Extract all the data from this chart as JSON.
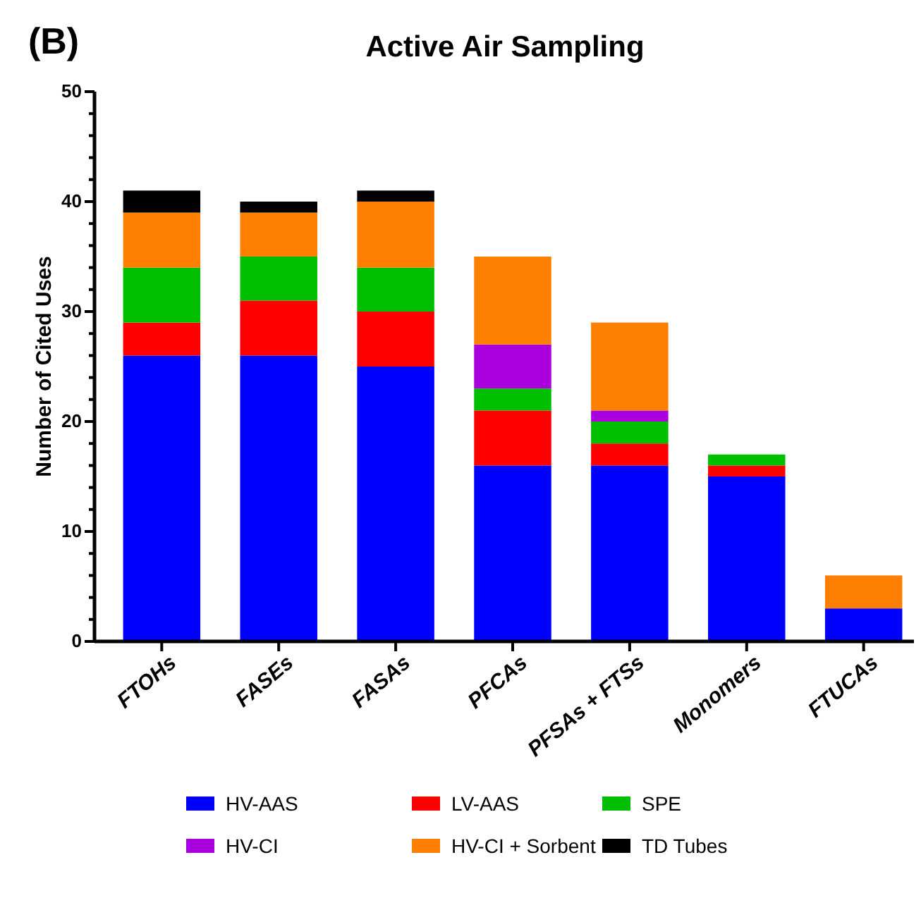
{
  "chart_data": {
    "type": "bar",
    "stacked": true,
    "title": "Active Air Sampling",
    "ylabel": "Number of Cited Uses",
    "annotations": [
      "(B)"
    ],
    "categories": [
      "FTOHs",
      "FASEs",
      "FASAs",
      "PFCAs",
      "PFSAs + FTSs",
      "Monomers",
      "FTUCAs"
    ],
    "series": [
      {
        "name": "HV-AAS",
        "color": "#0000ff",
        "values": [
          26,
          26,
          25,
          16,
          16,
          15,
          3
        ]
      },
      {
        "name": "LV-AAS",
        "color": "#ff0000",
        "values": [
          3,
          5,
          5,
          5,
          2,
          1,
          0
        ]
      },
      {
        "name": "SPE",
        "color": "#00bf00",
        "values": [
          5,
          4,
          4,
          2,
          2,
          1,
          0
        ]
      },
      {
        "name": "HV-CI",
        "color": "#aa00dd",
        "values": [
          0,
          0,
          0,
          4,
          1,
          0,
          0
        ]
      },
      {
        "name": "HV-CI + Sorbent",
        "color": "#ff8000",
        "values": [
          5,
          4,
          6,
          8,
          8,
          0,
          3
        ]
      },
      {
        "name": "TD Tubes",
        "color": "#000000",
        "values": [
          2,
          1,
          1,
          0,
          0,
          0,
          0
        ]
      }
    ],
    "ylim": [
      0,
      50
    ],
    "yticks": [
      0,
      {
        "value": 2,
        "label": null
      },
      {
        "value": 4,
        "label": null
      },
      {
        "value": 6,
        "label": null
      },
      {
        "value": 8,
        "label": null
      },
      10,
      {
        "value": 12,
        "label": null
      },
      {
        "value": 14,
        "label": null
      },
      {
        "value": 16,
        "label": null
      },
      {
        "value": 18,
        "label": null
      },
      20,
      {
        "value": 22,
        "label": null
      },
      {
        "value": 24,
        "label": null
      },
      {
        "value": 26,
        "label": null
      },
      {
        "value": 28,
        "label": null
      },
      30,
      {
        "value": 32,
        "label": null
      },
      {
        "value": 34,
        "label": null
      },
      {
        "value": 36,
        "label": null
      },
      {
        "value": 38,
        "label": null
      },
      40,
      {
        "value": 42,
        "label": null
      },
      {
        "value": 44,
        "label": null
      },
      {
        "value": 46,
        "label": null
      },
      {
        "value": 48,
        "label": null
      },
      50
    ],
    "grid": false,
    "legend": "bottom"
  }
}
